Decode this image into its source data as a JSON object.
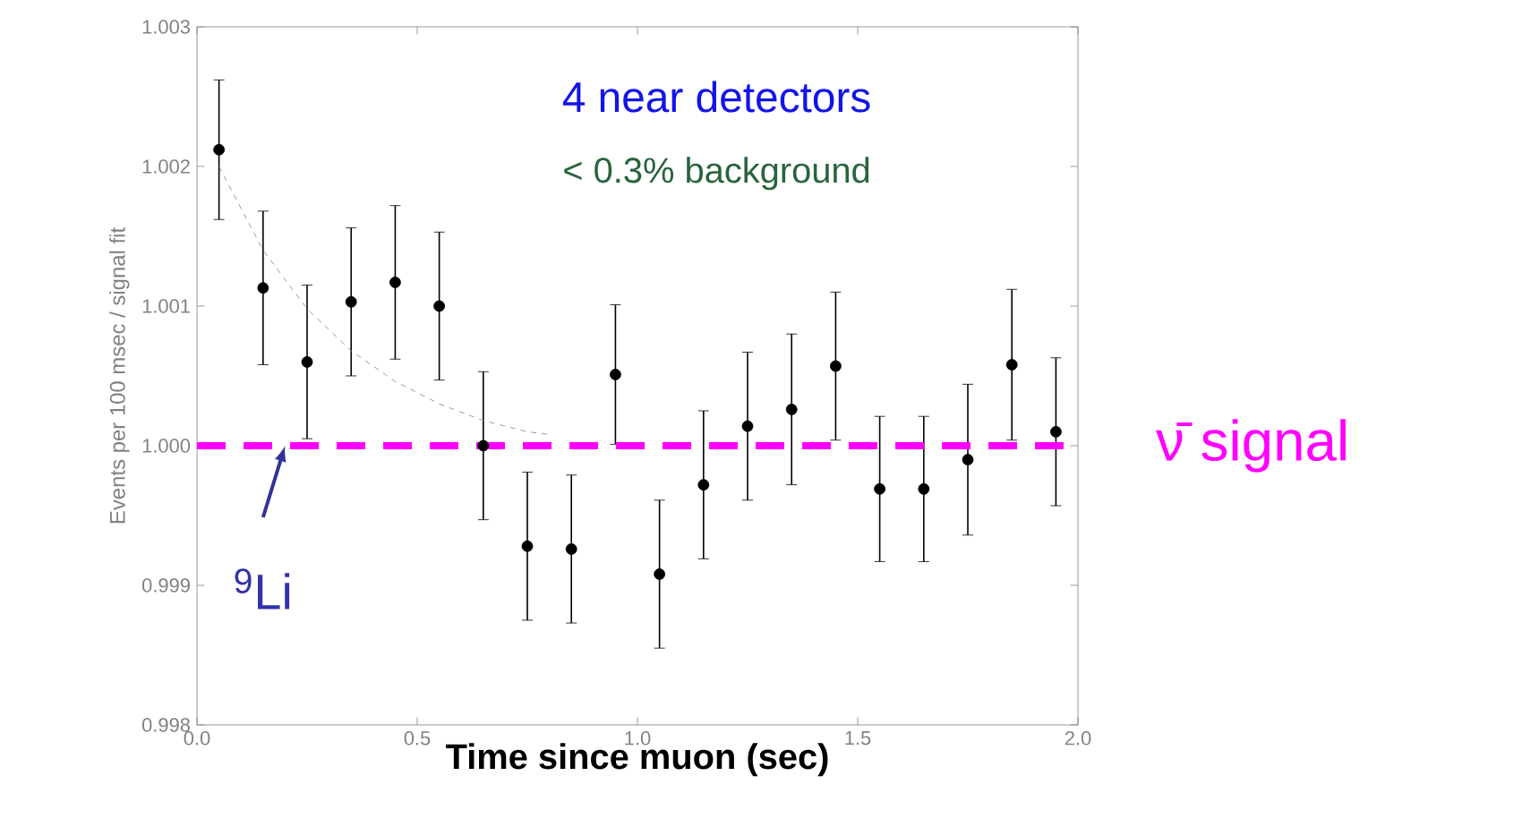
{
  "chart_data": {
    "type": "scatter",
    "xlabel": "**Time since muon (sec)**",
    "ylabel": "Events per 100 msec / signal fit",
    "xlim": [
      0.0,
      2.0
    ],
    "xticks": [
      {
        "value": 0.0,
        "label": "0.0"
      },
      {
        "value": 0.5,
        "label": "0.5"
      },
      {
        "value": 1.0,
        "label": "1.0"
      },
      {
        "value": 1.5,
        "label": "1.5"
      },
      {
        "value": 2.0,
        "label": "2.0"
      }
    ],
    "ylim": [
      0.998,
      1.003
    ],
    "yticks": [
      0.998,
      0.999,
      {
        "value": 1.0,
        "label": "1.000"
      },
      1.001,
      1.002,
      1.003
    ],
    "series": [
      {
        "color": "#000000",
        "marker": "circle",
        "x": [
          0.05,
          0.15,
          0.25,
          0.35,
          0.45,
          0.55,
          0.65,
          0.75,
          0.85,
          0.95,
          1.05,
          1.15,
          1.25,
          1.35,
          1.45,
          1.55,
          1.65,
          1.75,
          1.85,
          1.95
        ],
        "values": [
          1.00212,
          1.00113,
          1.0006,
          1.00103,
          1.00117,
          1.001,
          1.0,
          0.99928,
          0.99926,
          1.00051,
          0.99908,
          0.99972,
          1.00014,
          1.00026,
          1.00057,
          0.99969,
          0.99969,
          0.9999,
          1.00058,
          1.0001
        ],
        "errors": [
          0.0005,
          0.00055,
          0.00055,
          0.00053,
          0.00055,
          0.00053,
          0.00053,
          0.00053,
          0.00053,
          0.0005,
          0.00053,
          0.00053,
          0.00053,
          0.00054,
          0.00053,
          0.00052,
          0.00052,
          0.00054,
          0.00054,
          0.00053
        ]
      },
      {
        "type": "line",
        "color": "#808080",
        "line_style": "dashed",
        "marker": "none",
        "x": [
          0.05,
          0.15,
          0.25,
          0.35,
          0.45,
          0.55,
          0.65,
          0.75,
          0.8
        ],
        "values": [
          1.002,
          1.0014,
          1.00098,
          1.00068,
          1.00046,
          1.0003,
          1.00018,
          1.0001,
          1.00008
        ]
      }
    ],
    "ref_lines": [
      {
        "axis": "y",
        "value": 1.0,
        "label": "ν̄ signal",
        "color": "#ff00ff",
        "line_style": "dashed"
      }
    ],
    "annotations": [
      "4 near detectors",
      "< 0.3% background",
      {
        "text": "$^{9}$Li",
        "x": 0.2,
        "y": 1.0
      }
    ]
  }
}
